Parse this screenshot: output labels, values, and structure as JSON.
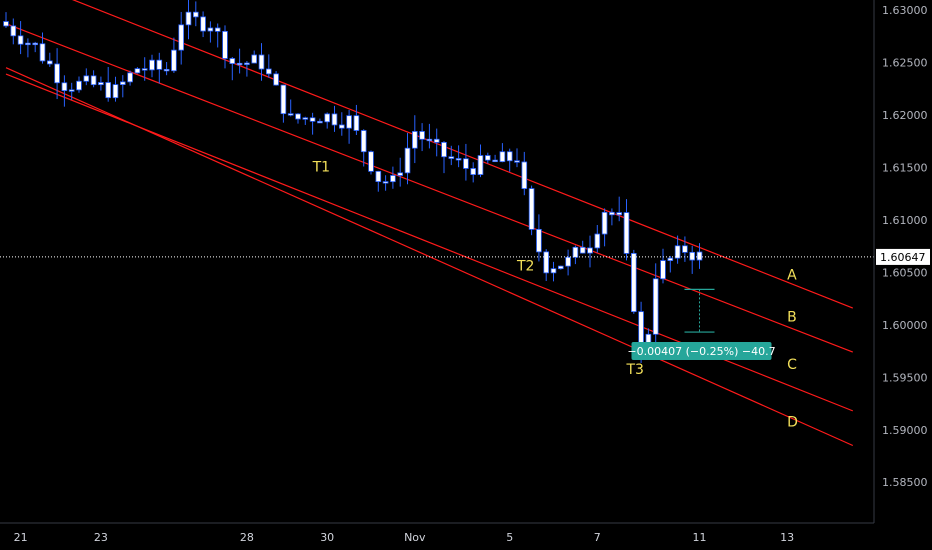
{
  "chart_data": {
    "type": "candlestick",
    "y_ticks": [
      "1.63000",
      "1.62500",
      "1.62000",
      "1.61500",
      "1.61000",
      "1.60500",
      "1.60000",
      "1.59500",
      "1.59000",
      "1.58500"
    ],
    "y_tick_values": [
      1.63,
      1.625,
      1.62,
      1.615,
      1.61,
      1.605,
      1.6,
      1.595,
      1.59,
      1.585
    ],
    "x_ticks": [
      "21",
      "23",
      "28",
      "30",
      "Nov",
      "5",
      "7",
      "11",
      "13"
    ],
    "ylim": [
      1.5808,
      1.6308
    ],
    "current_price": {
      "label": "1.60647",
      "value": 1.60647
    },
    "channel_lines": [
      {
        "name": "A",
        "start": [
          0,
          1.6335
        ],
        "end": [
          116,
          1.6016
        ]
      },
      {
        "name": "B",
        "start": [
          0,
          1.6287
        ],
        "end": [
          116,
          1.5974
        ]
      },
      {
        "name": "C",
        "start": [
          0,
          1.6239
        ],
        "end": [
          116,
          1.5918
        ]
      },
      {
        "name": "D",
        "start": [
          0,
          1.6245
        ],
        "end": [
          116,
          1.5885
        ]
      }
    ],
    "annotations": [
      {
        "text": "T1",
        "x": 42,
        "y": 1.6146
      },
      {
        "text": "T2",
        "x": 70,
        "y": 1.6052
      },
      {
        "text": "T3",
        "x": 85,
        "y": 1.5953
      },
      {
        "text": "A",
        "x": 107,
        "y": 1.6043
      },
      {
        "text": "B",
        "x": 107,
        "y": 1.6003
      },
      {
        "text": "C",
        "x": 107,
        "y": 1.5958
      },
      {
        "text": "D",
        "x": 107,
        "y": 1.5903
      }
    ],
    "measure": {
      "label": "−0.00407 (−0.25%) −40.7",
      "from": 1.60338,
      "to": 1.59931,
      "x": 95
    },
    "colors": {
      "up_body": "#ffffff",
      "down_body": "#ffffff",
      "wick": "#2962ff",
      "channel": "#ff1a1a",
      "annotation": "#f3e05a",
      "measure": "#26a69a",
      "price_line": "#ffffff",
      "axis_text": "#b2b5be"
    }
  }
}
